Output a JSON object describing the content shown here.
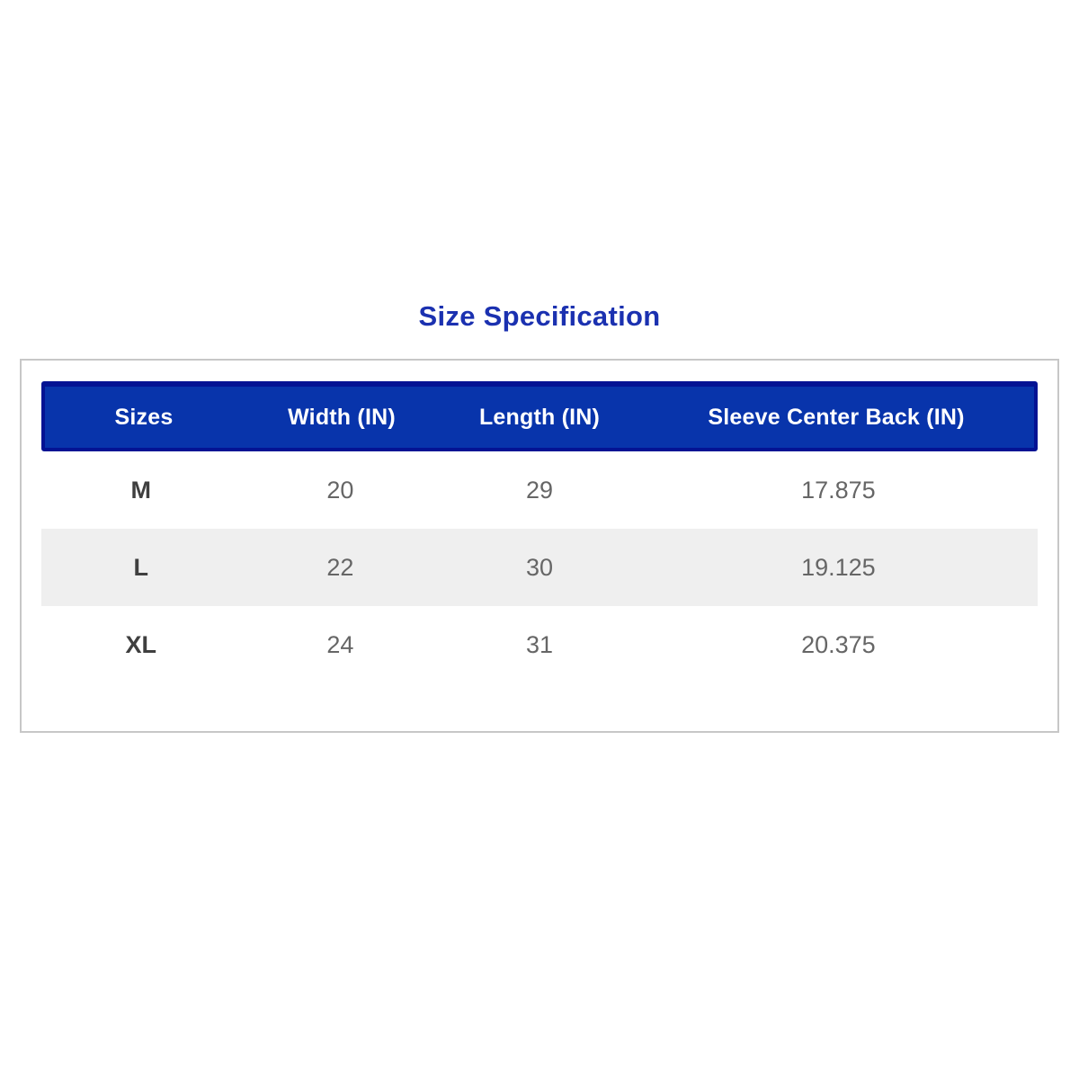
{
  "theme": {
    "title-color": "#1B31B0",
    "header-bg": "#0834AB",
    "header-border": "#041393",
    "header-text": "#FFFFFF",
    "alt-row-bg": "#EFEFEF",
    "size-text": "#3F3F3F",
    "value-text": "#666666",
    "panel-border": "#C7C7C7"
  },
  "page": {
    "title": "Size Specification"
  },
  "table": {
    "columns": [
      "Sizes",
      "Width (IN)",
      "Length (IN)",
      "Sleeve Center Back (IN)"
    ],
    "rows": [
      {
        "size": "M",
        "width": "20",
        "length": "29",
        "sleeve": "17.875"
      },
      {
        "size": "L",
        "width": "22",
        "length": "30",
        "sleeve": "19.125"
      },
      {
        "size": "XL",
        "width": "24",
        "length": "31",
        "sleeve": "20.375"
      }
    ]
  }
}
